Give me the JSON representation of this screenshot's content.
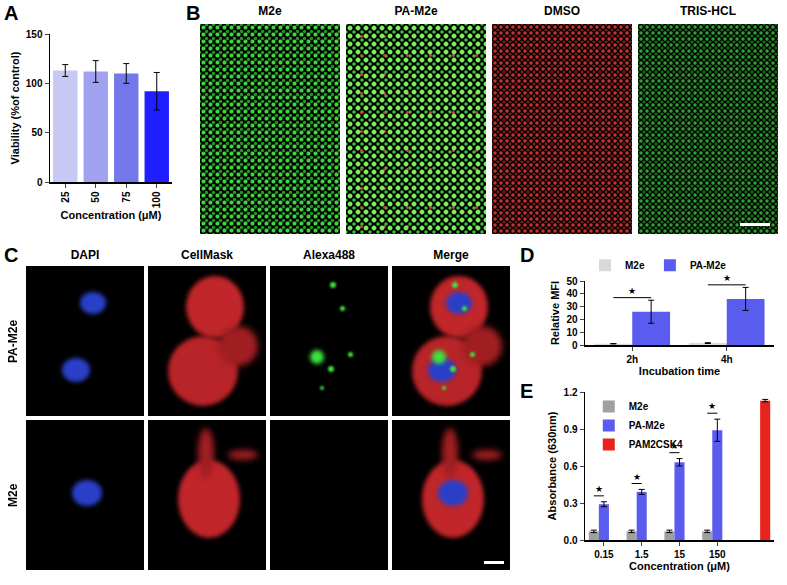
{
  "panels": {
    "B": {
      "letter": "B",
      "columns": [
        "M2e",
        "PA-M2e",
        "DMSO",
        "TRIS-HCL"
      ]
    },
    "C": {
      "letter": "C",
      "columns": [
        "DAPI",
        "CellMask",
        "Alexa488",
        "Merge"
      ],
      "rows": [
        "PA-M2e",
        "M2e"
      ]
    }
  },
  "chart_data": [
    {
      "panel": "A",
      "type": "bar",
      "categories": [
        "25",
        "50",
        "75",
        "100"
      ],
      "values": [
        113,
        112,
        110,
        92
      ],
      "errors": [
        6,
        11,
        10,
        19
      ],
      "colors": [
        "#c8c8f4",
        "#a0a2f0",
        "#7477ea",
        "#1e1eff"
      ],
      "x_label": "Concentration (μM)",
      "y_label": "Viability (%of control)",
      "ylim": [
        0,
        150
      ],
      "yticks": [
        0,
        50,
        100,
        150
      ],
      "grid": false
    },
    {
      "panel": "D",
      "type": "bar",
      "categories": [
        "2h",
        "4h"
      ],
      "series": [
        {
          "name": "M2e",
          "color": "#d9d9d9",
          "values": [
            1,
            1.5
          ],
          "errors": [
            0.1,
            0.3
          ]
        },
        {
          "name": "PA-M2e",
          "color": "#5a5cf0",
          "values": [
            26,
            36
          ],
          "errors": [
            9,
            9
          ]
        }
      ],
      "annotations": [
        {
          "category": "2h",
          "text": "★"
        },
        {
          "category": "4h",
          "text": "★"
        }
      ],
      "x_label": "Incubation time",
      "y_label": "Relative MFI",
      "ylim": [
        0,
        50
      ],
      "yticks": [
        0,
        10,
        20,
        30,
        40,
        50
      ],
      "legend": "top",
      "grid": false
    },
    {
      "panel": "E",
      "type": "bar",
      "categories": [
        "0.15",
        "1.5",
        "15",
        "150",
        null
      ],
      "series": [
        {
          "name": "M2e",
          "color": "#a0a0a0",
          "values": [
            0.07,
            0.07,
            0.07,
            0.07,
            null
          ],
          "errors": [
            0.01,
            0.01,
            0.01,
            0.01,
            null
          ]
        },
        {
          "name": "PA-M2e",
          "color": "#5a5cf0",
          "values": [
            0.29,
            0.39,
            0.63,
            0.89,
            null
          ],
          "errors": [
            0.02,
            0.02,
            0.03,
            0.09,
            null
          ]
        },
        {
          "name": "PAM2CSK4",
          "color": "#e8231c",
          "values": [
            null,
            null,
            null,
            null,
            1.13
          ],
          "errors": [
            null,
            null,
            null,
            null,
            0.01
          ]
        }
      ],
      "annotations": [
        {
          "category": "0.15",
          "text": "★"
        },
        {
          "category": "1.5",
          "text": "★"
        },
        {
          "category": "15",
          "text": "★"
        },
        {
          "category": "150",
          "text": "★"
        }
      ],
      "x_label": "Concentration (μM)",
      "y_label": "Absorbance (630nm)",
      "ylim": [
        0,
        1.2
      ],
      "yticks": [
        {
          "value": 0,
          "label": "0.0"
        },
        0.3,
        0.6,
        0.9,
        1.2
      ],
      "legend": "top-left",
      "grid": false
    }
  ]
}
